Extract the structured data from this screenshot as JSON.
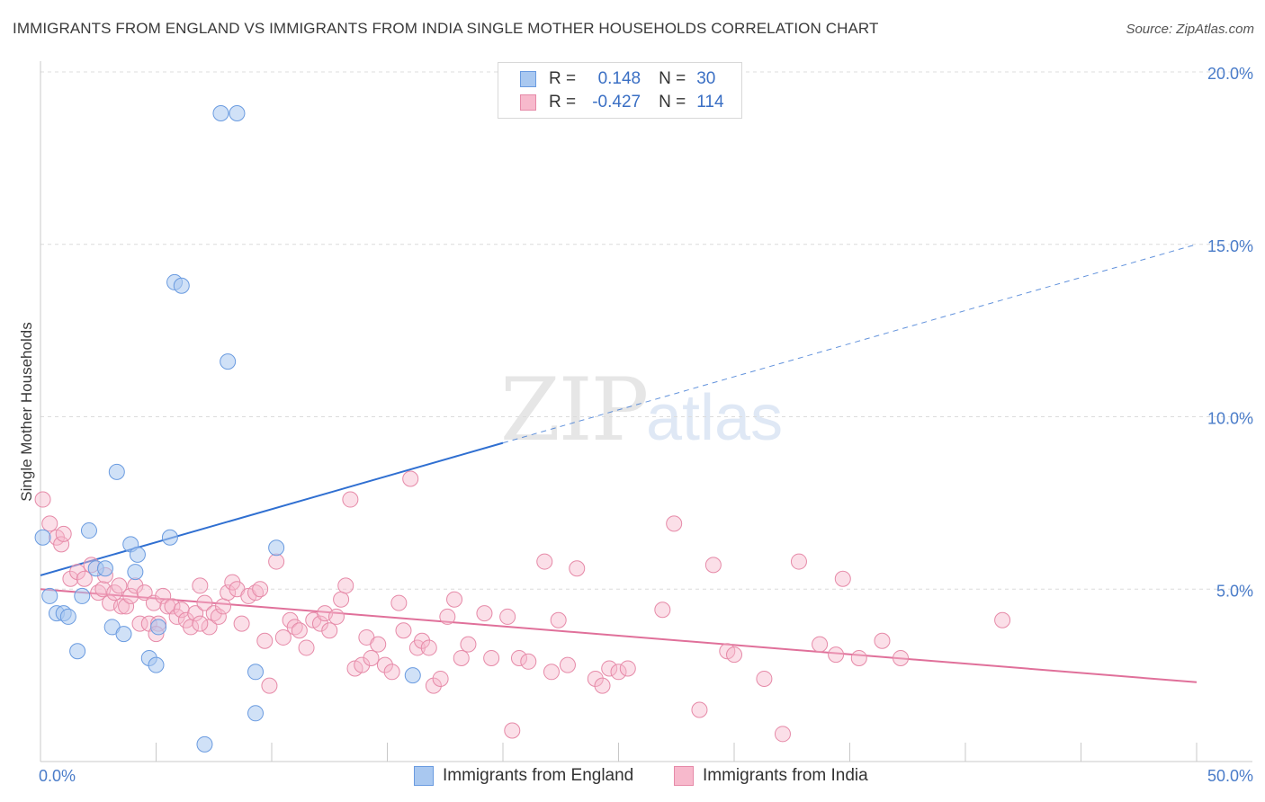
{
  "title": "IMMIGRANTS FROM ENGLAND VS IMMIGRANTS FROM INDIA SINGLE MOTHER HOUSEHOLDS CORRELATION CHART",
  "source": "Source: ZipAtlas.com",
  "watermark": {
    "zip": "ZIP",
    "atlas": "atlas"
  },
  "legend": {
    "r_label": "R =",
    "n_label": "N =",
    "rows": [
      {
        "r": "0.148",
        "n": "30"
      },
      {
        "r": "-0.427",
        "n": "114"
      }
    ]
  },
  "colors": {
    "england_fill": "#a9c8f0",
    "england_stroke": "#6a9be0",
    "england_line": "#2f6fd1",
    "india_fill": "#f7b9cc",
    "india_stroke": "#e68aa8",
    "india_line": "#e0709a",
    "grid": "#dcdcdc",
    "tick_text": "#4a7cc9"
  },
  "chart_data": {
    "type": "scatter",
    "title": "IMMIGRANTS FROM ENGLAND VS IMMIGRANTS FROM INDIA SINGLE MOTHER HOUSEHOLDS CORRELATION CHART",
    "xlabel": "",
    "ylabel": "Single Mother Households",
    "xlim": [
      0,
      50
    ],
    "ylim": [
      0,
      20.5
    ],
    "x_tick_labels": [
      "0.0%",
      "50.0%"
    ],
    "y_ticks": [
      5,
      10,
      15,
      20
    ],
    "y_tick_labels": [
      "5.0%",
      "10.0%",
      "15.0%",
      "20.0%"
    ],
    "grid": true,
    "legend_position": "bottom",
    "series": [
      {
        "name": "Immigrants from England",
        "r": 0.148,
        "n": 30,
        "trend": {
          "x0": 0,
          "y0": 5.4,
          "x_solid_end": 20,
          "x1": 50,
          "y1": 15.0
        },
        "points": [
          [
            0.1,
            6.5
          ],
          [
            0.4,
            4.8
          ],
          [
            0.7,
            4.3
          ],
          [
            1.0,
            4.3
          ],
          [
            1.2,
            4.2
          ],
          [
            1.6,
            3.2
          ],
          [
            1.8,
            4.8
          ],
          [
            2.1,
            6.7
          ],
          [
            2.4,
            5.6
          ],
          [
            2.8,
            5.6
          ],
          [
            3.1,
            3.9
          ],
          [
            3.3,
            8.4
          ],
          [
            3.6,
            3.7
          ],
          [
            3.9,
            6.3
          ],
          [
            4.1,
            5.5
          ],
          [
            4.2,
            6.0
          ],
          [
            4.7,
            3.0
          ],
          [
            5.0,
            2.8
          ],
          [
            5.1,
            3.9
          ],
          [
            5.6,
            6.5
          ],
          [
            5.8,
            13.9
          ],
          [
            6.1,
            13.8
          ],
          [
            7.1,
            0.5
          ],
          [
            7.8,
            18.8
          ],
          [
            8.1,
            11.6
          ],
          [
            8.5,
            18.8
          ],
          [
            9.3,
            2.6
          ],
          [
            9.3,
            1.4
          ],
          [
            10.2,
            6.2
          ],
          [
            16.1,
            2.5
          ]
        ]
      },
      {
        "name": "Immigrants from India",
        "r": -0.427,
        "n": 114,
        "trend": {
          "x0": 0,
          "y0": 5.0,
          "x1": 50,
          "y1": 2.3
        },
        "points": [
          [
            0.1,
            7.6
          ],
          [
            0.4,
            6.9
          ],
          [
            0.7,
            6.5
          ],
          [
            0.9,
            6.3
          ],
          [
            1.0,
            6.6
          ],
          [
            1.3,
            5.3
          ],
          [
            1.6,
            5.5
          ],
          [
            1.9,
            5.3
          ],
          [
            2.2,
            5.7
          ],
          [
            2.5,
            4.9
          ],
          [
            2.7,
            5.0
          ],
          [
            2.8,
            5.4
          ],
          [
            3.0,
            4.6
          ],
          [
            3.2,
            4.9
          ],
          [
            3.4,
            5.1
          ],
          [
            3.5,
            4.5
          ],
          [
            3.7,
            4.5
          ],
          [
            3.9,
            4.8
          ],
          [
            4.1,
            5.1
          ],
          [
            4.3,
            4.0
          ],
          [
            4.5,
            4.9
          ],
          [
            4.7,
            4.0
          ],
          [
            4.9,
            4.6
          ],
          [
            5.1,
            4.0
          ],
          [
            5.3,
            4.8
          ],
          [
            5.5,
            4.5
          ],
          [
            5.7,
            4.5
          ],
          [
            5.9,
            4.2
          ],
          [
            6.1,
            4.4
          ],
          [
            6.3,
            4.1
          ],
          [
            6.5,
            3.9
          ],
          [
            6.7,
            4.3
          ],
          [
            6.9,
            5.1
          ],
          [
            7.1,
            4.6
          ],
          [
            7.3,
            3.9
          ],
          [
            7.5,
            4.3
          ],
          [
            7.7,
            4.2
          ],
          [
            7.9,
            4.5
          ],
          [
            8.1,
            4.9
          ],
          [
            8.3,
            5.2
          ],
          [
            8.5,
            5.0
          ],
          [
            8.7,
            4.0
          ],
          [
            9.0,
            4.8
          ],
          [
            9.3,
            4.9
          ],
          [
            9.5,
            5.0
          ],
          [
            9.7,
            3.5
          ],
          [
            9.9,
            2.2
          ],
          [
            10.2,
            5.8
          ],
          [
            10.5,
            3.6
          ],
          [
            10.8,
            4.1
          ],
          [
            11.0,
            3.9
          ],
          [
            11.2,
            3.8
          ],
          [
            11.5,
            3.3
          ],
          [
            11.8,
            4.1
          ],
          [
            12.1,
            4.0
          ],
          [
            12.3,
            4.3
          ],
          [
            12.5,
            3.8
          ],
          [
            12.8,
            4.2
          ],
          [
            13.0,
            4.7
          ],
          [
            13.2,
            5.1
          ],
          [
            13.4,
            7.6
          ],
          [
            13.6,
            2.7
          ],
          [
            13.9,
            2.8
          ],
          [
            14.1,
            3.6
          ],
          [
            14.3,
            3.0
          ],
          [
            14.6,
            3.4
          ],
          [
            14.9,
            2.8
          ],
          [
            15.2,
            2.6
          ],
          [
            15.5,
            4.6
          ],
          [
            15.7,
            3.8
          ],
          [
            16.0,
            8.2
          ],
          [
            16.3,
            3.3
          ],
          [
            16.5,
            3.5
          ],
          [
            16.8,
            3.3
          ],
          [
            17.0,
            2.2
          ],
          [
            17.3,
            2.4
          ],
          [
            17.6,
            4.2
          ],
          [
            17.9,
            4.7
          ],
          [
            18.2,
            3.0
          ],
          [
            18.5,
            3.4
          ],
          [
            19.2,
            4.3
          ],
          [
            19.5,
            3.0
          ],
          [
            20.2,
            4.2
          ],
          [
            20.7,
            3.0
          ],
          [
            21.1,
            2.9
          ],
          [
            21.8,
            5.8
          ],
          [
            22.1,
            2.6
          ],
          [
            22.4,
            4.1
          ],
          [
            22.8,
            2.8
          ],
          [
            23.2,
            5.6
          ],
          [
            24.0,
            2.4
          ],
          [
            24.3,
            2.2
          ],
          [
            24.6,
            2.7
          ],
          [
            25.0,
            2.6
          ],
          [
            25.4,
            2.7
          ],
          [
            26.9,
            4.4
          ],
          [
            27.4,
            6.9
          ],
          [
            28.5,
            1.5
          ],
          [
            29.1,
            5.7
          ],
          [
            29.7,
            3.2
          ],
          [
            30.0,
            3.1
          ],
          [
            31.3,
            2.4
          ],
          [
            32.1,
            0.8
          ],
          [
            32.8,
            5.8
          ],
          [
            34.4,
            3.1
          ],
          [
            33.7,
            3.4
          ],
          [
            34.7,
            5.3
          ],
          [
            35.4,
            3.0
          ],
          [
            36.4,
            3.5
          ],
          [
            37.2,
            3.0
          ],
          [
            41.6,
            4.1
          ],
          [
            5.0,
            3.7
          ],
          [
            20.4,
            0.9
          ],
          [
            6.9,
            4.0
          ]
        ]
      }
    ]
  }
}
